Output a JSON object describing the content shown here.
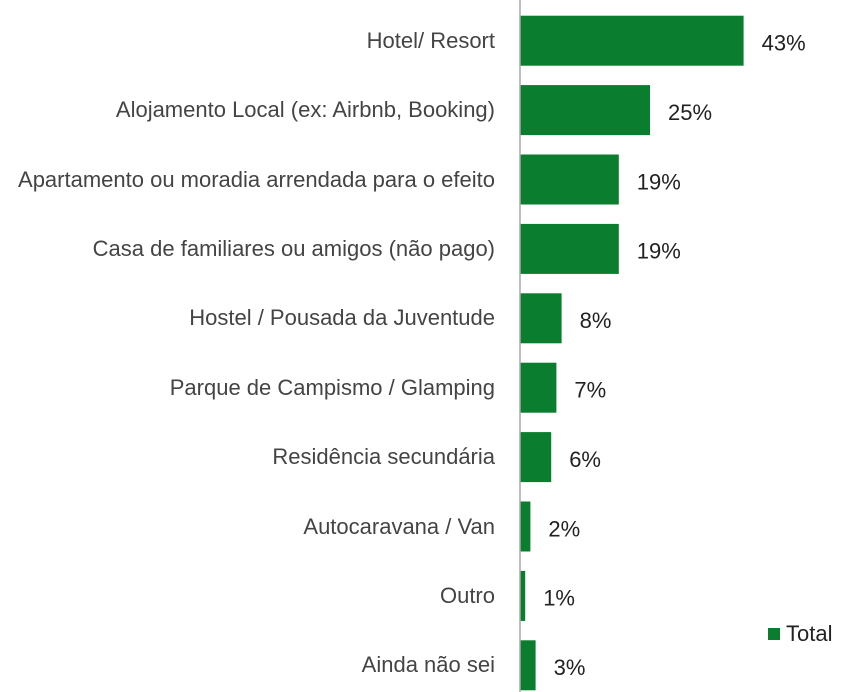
{
  "chart_data": {
    "type": "bar",
    "orientation": "horizontal",
    "categories": [
      "Hotel/ Resort",
      "Alojamento Local (ex: Airbnb, Booking)",
      "Apartamento ou moradia arrendada para o efeito",
      "Casa de familiares ou amigos (não pago)",
      "Hostel / Pousada da Juventude",
      "Parque de Campismo / Glamping",
      "Residência secundária",
      "Autocaravana / Van",
      "Outro",
      "Ainda não sei"
    ],
    "series": [
      {
        "name": "Total",
        "color": "#0a7d2e",
        "values": [
          43,
          25,
          19,
          19,
          8,
          7,
          6,
          2,
          1,
          3
        ],
        "value_labels": [
          "43%",
          "25%",
          "19%",
          "19%",
          "8%",
          "7%",
          "6%",
          "2%",
          "1%",
          "3%"
        ]
      }
    ],
    "xlim": [
      0,
      60
    ],
    "legend": "bottom-right"
  }
}
